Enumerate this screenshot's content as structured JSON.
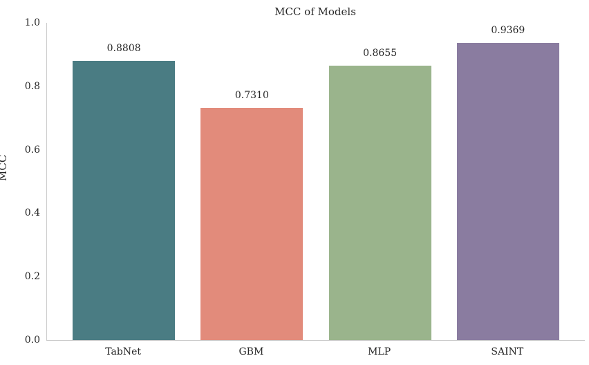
{
  "chart_data": {
    "type": "bar",
    "title": "MCC of Models",
    "xlabel": "",
    "ylabel": "MCC",
    "categories": [
      "TabNet",
      "GBM",
      "MLP",
      "SAINT"
    ],
    "values": [
      0.8808,
      0.731,
      0.8655,
      0.9369
    ],
    "value_labels": [
      "0.8808",
      "0.7310",
      "0.8655",
      "0.9369"
    ],
    "bar_colors": [
      "#4a7c83",
      "#e28b7b",
      "#9ab48c",
      "#8a7ca0"
    ],
    "ylim": [
      0.0,
      1.0
    ],
    "yticks": [
      0.0,
      0.2,
      0.4,
      0.6,
      0.8,
      1.0
    ],
    "ytick_labels": [
      "0.0",
      "0.2",
      "0.4",
      "0.6",
      "0.8",
      "1.0"
    ],
    "grid": false,
    "legend": "none",
    "text_color": "#262626",
    "spine_color": "#cccccc",
    "background": "#ffffff"
  }
}
